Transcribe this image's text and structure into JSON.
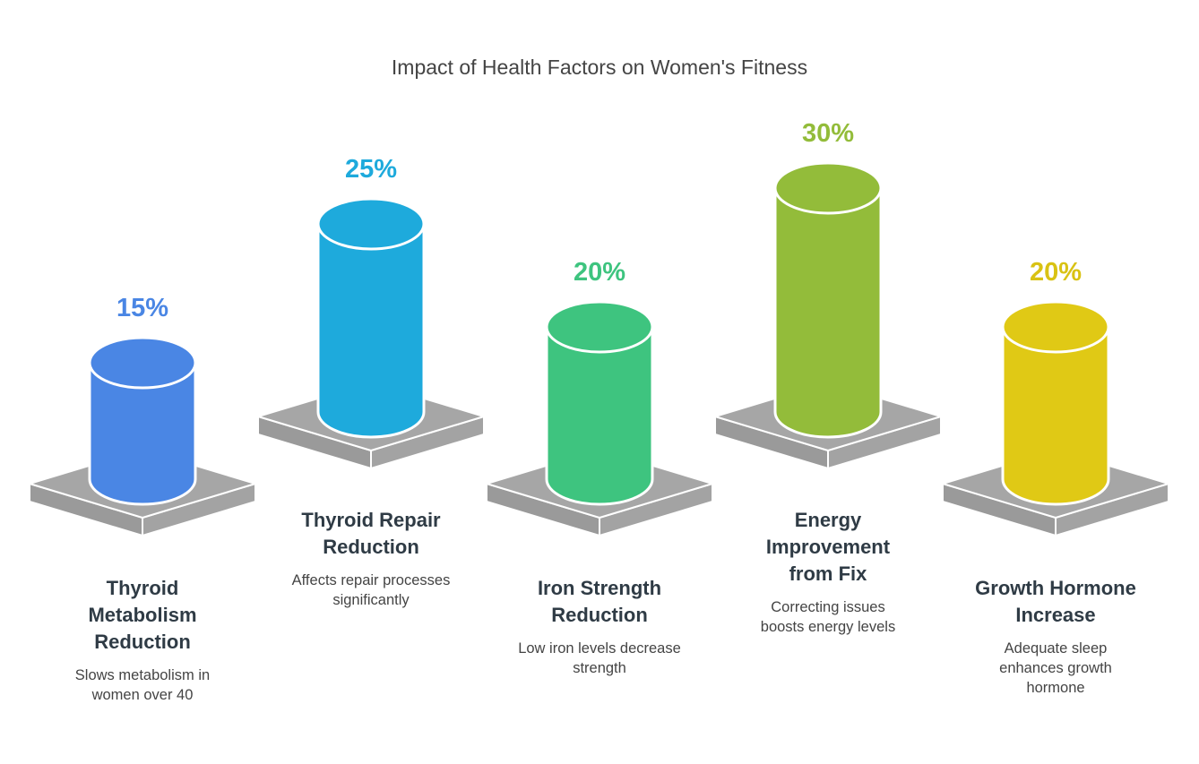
{
  "chart_data": {
    "type": "bar",
    "style": "3d-cylinder",
    "title": "Impact of Health Factors on Women's Fitness",
    "unit": "%",
    "categories": [
      "Thyroid Metabolism Reduction",
      "Thyroid Repair Reduction",
      "Iron Strength Reduction",
      "Energy Improvement from Fix",
      "Growth Hormone Increase"
    ],
    "values": [
      15,
      25,
      20,
      30,
      20
    ],
    "items": [
      {
        "value_label": "15%",
        "label_lines": [
          "Thyroid",
          "Metabolism",
          "Reduction"
        ],
        "desc_lines": [
          "Slows metabolism in",
          "women over 40"
        ],
        "color": "#4a86e4",
        "text_color": "#4a86e4"
      },
      {
        "value_label": "25%",
        "label_lines": [
          "Thyroid Repair",
          "Reduction"
        ],
        "desc_lines": [
          "Affects repair processes",
          "significantly"
        ],
        "color": "#1eaadc",
        "text_color": "#1eaadc"
      },
      {
        "value_label": "20%",
        "label_lines": [
          "Iron Strength",
          "Reduction"
        ],
        "desc_lines": [
          "Low iron levels decrease",
          "strength"
        ],
        "color": "#3ec47f",
        "text_color": "#3ec47f"
      },
      {
        "value_label": "30%",
        "label_lines": [
          "Energy",
          "Improvement",
          "from Fix"
        ],
        "desc_lines": [
          "Correcting issues",
          "boosts energy levels"
        ],
        "color": "#93bc3a",
        "text_color": "#93bc3a"
      },
      {
        "value_label": "20%",
        "label_lines": [
          "Growth Hormone",
          "Increase"
        ],
        "desc_lines": [
          "Adequate sleep",
          "enhances growth",
          "hormone"
        ],
        "color": "#e0c915",
        "text_color": "#d9c213"
      }
    ],
    "platform_color": "#a6a6a6",
    "grid": false,
    "legend": "none"
  }
}
